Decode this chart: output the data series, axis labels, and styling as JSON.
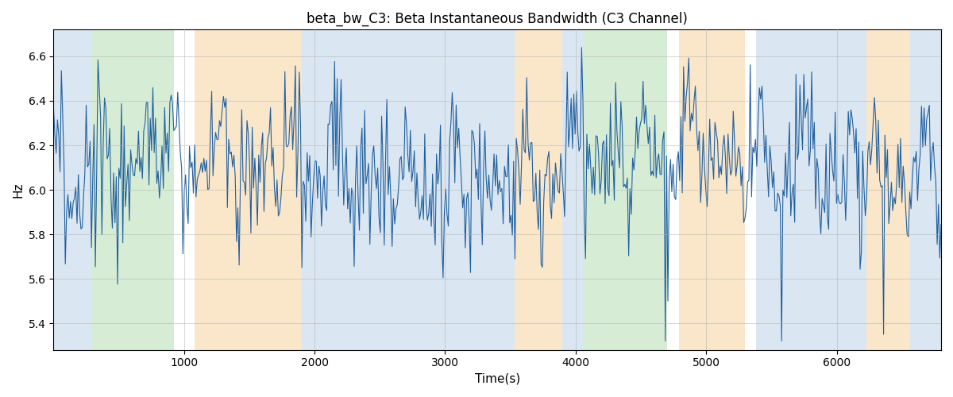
{
  "title": "beta_bw_C3: Beta Instantaneous Bandwidth (C3 Channel)",
  "xlabel": "Time(s)",
  "ylabel": "Hz",
  "xlim": [
    0,
    6800
  ],
  "ylim": [
    5.28,
    6.72
  ],
  "line_color": "#2060a0",
  "line_width": 0.8,
  "background_color": "#ffffff",
  "grid_color": "#b0b0b0",
  "title_fontsize": 12,
  "label_fontsize": 11,
  "colored_bands": [
    {
      "xmin": 0,
      "xmax": 290,
      "color": "#adc8e0",
      "alpha": 0.45
    },
    {
      "xmin": 290,
      "xmax": 920,
      "color": "#a8d5a0",
      "alpha": 0.45
    },
    {
      "xmin": 920,
      "xmax": 1080,
      "color": "#ffffff",
      "alpha": 1.0
    },
    {
      "xmin": 1080,
      "xmax": 1900,
      "color": "#f5c888",
      "alpha": 0.45
    },
    {
      "xmin": 1900,
      "xmax": 3530,
      "color": "#adc8e0",
      "alpha": 0.45
    },
    {
      "xmin": 3530,
      "xmax": 3900,
      "color": "#f5c888",
      "alpha": 0.45
    },
    {
      "xmin": 3900,
      "xmax": 4060,
      "color": "#adc8e0",
      "alpha": 0.45
    },
    {
      "xmin": 4060,
      "xmax": 4700,
      "color": "#a8d5a0",
      "alpha": 0.45
    },
    {
      "xmin": 4700,
      "xmax": 4790,
      "color": "#ffffff",
      "alpha": 1.0
    },
    {
      "xmin": 4790,
      "xmax": 5300,
      "color": "#f5c888",
      "alpha": 0.45
    },
    {
      "xmin": 5300,
      "xmax": 5380,
      "color": "#ffffff",
      "alpha": 1.0
    },
    {
      "xmin": 5380,
      "xmax": 6230,
      "color": "#adc8e0",
      "alpha": 0.45
    },
    {
      "xmin": 6230,
      "xmax": 6560,
      "color": "#f5c888",
      "alpha": 0.45
    },
    {
      "xmin": 6560,
      "xmax": 6800,
      "color": "#adc8e0",
      "alpha": 0.45
    }
  ],
  "yticks": [
    5.4,
    5.6,
    5.8,
    6.0,
    6.2,
    6.4,
    6.6
  ],
  "xticks": [
    1000,
    2000,
    3000,
    4000,
    5000,
    6000
  ],
  "seed": 2023,
  "n_points": 680,
  "time_start": 0,
  "time_end": 6800
}
